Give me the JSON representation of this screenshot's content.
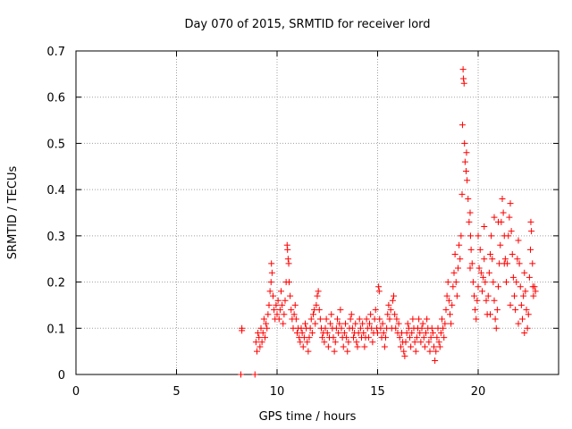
{
  "chart_data": {
    "type": "scatter",
    "title": "Day 070 of 2015, SRMTID for receiver lord",
    "xlabel": "GPS time / hours",
    "ylabel": "SRMTID / TECUs",
    "xlim": [
      0,
      24
    ],
    "ylim": [
      0,
      0.7
    ],
    "xticks": [
      0,
      5,
      10,
      15,
      20
    ],
    "xtick_labels": [
      "0",
      "5",
      "10",
      "15",
      "20"
    ],
    "yticks": [
      0,
      0.1,
      0.2,
      0.3,
      0.4,
      0.5,
      0.6,
      0.7
    ],
    "ytick_labels": [
      "0",
      "0.1",
      "0.2",
      "0.3",
      "0.4",
      "0.5",
      "0.6",
      "0.7"
    ],
    "grid": true,
    "marker": "+",
    "color": "#ff0000",
    "series": [
      {
        "name": "SRMTID",
        "points": [
          [
            8.2,
            0.0
          ],
          [
            8.9,
            0.0
          ],
          [
            8.25,
            0.1
          ],
          [
            8.25,
            0.095
          ],
          [
            8.95,
            0.07
          ],
          [
            9.0,
            0.05
          ],
          [
            9.05,
            0.09
          ],
          [
            9.1,
            0.08
          ],
          [
            9.15,
            0.06
          ],
          [
            9.2,
            0.1
          ],
          [
            9.25,
            0.07
          ],
          [
            9.3,
            0.09
          ],
          [
            9.35,
            0.12
          ],
          [
            9.4,
            0.08
          ],
          [
            9.45,
            0.11
          ],
          [
            9.5,
            0.1
          ],
          [
            9.55,
            0.13
          ],
          [
            9.6,
            0.15
          ],
          [
            9.65,
            0.18
          ],
          [
            9.7,
            0.2
          ],
          [
            9.72,
            0.24
          ],
          [
            9.75,
            0.22
          ],
          [
            9.8,
            0.17
          ],
          [
            9.85,
            0.14
          ],
          [
            9.9,
            0.12
          ],
          [
            9.95,
            0.15
          ],
          [
            10.0,
            0.13
          ],
          [
            10.05,
            0.16
          ],
          [
            10.1,
            0.12
          ],
          [
            10.15,
            0.14
          ],
          [
            10.2,
            0.18
          ],
          [
            10.25,
            0.15
          ],
          [
            10.3,
            0.11
          ],
          [
            10.35,
            0.13
          ],
          [
            10.4,
            0.16
          ],
          [
            10.45,
            0.2
          ],
          [
            10.5,
            0.28
          ],
          [
            10.52,
            0.27
          ],
          [
            10.55,
            0.25
          ],
          [
            10.58,
            0.24
          ],
          [
            10.6,
            0.2
          ],
          [
            10.65,
            0.17
          ],
          [
            10.7,
            0.14
          ],
          [
            10.75,
            0.12
          ],
          [
            10.8,
            0.1
          ],
          [
            10.85,
            0.13
          ],
          [
            10.9,
            0.15
          ],
          [
            10.95,
            0.12
          ],
          [
            11.0,
            0.09
          ],
          [
            11.05,
            0.1
          ],
          [
            11.1,
            0.08
          ],
          [
            11.15,
            0.07
          ],
          [
            11.2,
            0.1
          ],
          [
            11.25,
            0.09
          ],
          [
            11.3,
            0.06
          ],
          [
            11.35,
            0.08
          ],
          [
            11.4,
            0.11
          ],
          [
            11.45,
            0.1
          ],
          [
            11.5,
            0.07
          ],
          [
            11.55,
            0.05
          ],
          [
            11.6,
            0.08
          ],
          [
            11.65,
            0.1
          ],
          [
            11.7,
            0.12
          ],
          [
            11.75,
            0.09
          ],
          [
            11.8,
            0.13
          ],
          [
            11.85,
            0.14
          ],
          [
            11.9,
            0.11
          ],
          [
            11.95,
            0.15
          ],
          [
            12.0,
            0.17
          ],
          [
            12.05,
            0.18
          ],
          [
            12.1,
            0.14
          ],
          [
            12.15,
            0.12
          ],
          [
            12.2,
            0.1
          ],
          [
            12.25,
            0.08
          ],
          [
            12.3,
            0.09
          ],
          [
            12.35,
            0.07
          ],
          [
            12.4,
            0.1
          ],
          [
            12.45,
            0.12
          ],
          [
            12.5,
            0.09
          ],
          [
            12.55,
            0.06
          ],
          [
            12.6,
            0.08
          ],
          [
            12.65,
            0.11
          ],
          [
            12.7,
            0.13
          ],
          [
            12.75,
            0.1
          ],
          [
            12.8,
            0.08
          ],
          [
            12.85,
            0.05
          ],
          [
            12.9,
            0.07
          ],
          [
            12.95,
            0.1
          ],
          [
            13.0,
            0.12
          ],
          [
            13.05,
            0.09
          ],
          [
            13.1,
            0.11
          ],
          [
            13.15,
            0.14
          ],
          [
            13.2,
            0.1
          ],
          [
            13.25,
            0.08
          ],
          [
            13.3,
            0.06
          ],
          [
            13.35,
            0.09
          ],
          [
            13.4,
            0.11
          ],
          [
            13.45,
            0.08
          ],
          [
            13.5,
            0.05
          ],
          [
            13.55,
            0.07
          ],
          [
            13.6,
            0.1
          ],
          [
            13.65,
            0.12
          ],
          [
            13.7,
            0.13
          ],
          [
            13.75,
            0.1
          ],
          [
            13.8,
            0.08
          ],
          [
            13.85,
            0.09
          ],
          [
            13.9,
            0.11
          ],
          [
            13.95,
            0.07
          ],
          [
            14.0,
            0.06
          ],
          [
            14.05,
            0.09
          ],
          [
            14.1,
            0.12
          ],
          [
            14.15,
            0.1
          ],
          [
            14.2,
            0.08
          ],
          [
            14.25,
            0.11
          ],
          [
            14.3,
            0.09
          ],
          [
            14.35,
            0.06
          ],
          [
            14.4,
            0.08
          ],
          [
            14.45,
            0.12
          ],
          [
            14.5,
            0.1
          ],
          [
            14.55,
            0.08
          ],
          [
            14.6,
            0.11
          ],
          [
            14.65,
            0.13
          ],
          [
            14.7,
            0.1
          ],
          [
            14.75,
            0.07
          ],
          [
            14.8,
            0.09
          ],
          [
            14.85,
            0.12
          ],
          [
            14.9,
            0.14
          ],
          [
            14.95,
            0.1
          ],
          [
            15.0,
            0.09
          ],
          [
            15.05,
            0.19
          ],
          [
            15.08,
            0.18
          ],
          [
            15.1,
            0.12
          ],
          [
            15.15,
            0.1
          ],
          [
            15.2,
            0.08
          ],
          [
            15.25,
            0.11
          ],
          [
            15.3,
            0.09
          ],
          [
            15.35,
            0.06
          ],
          [
            15.4,
            0.08
          ],
          [
            15.45,
            0.1
          ],
          [
            15.5,
            0.13
          ],
          [
            15.55,
            0.15
          ],
          [
            15.6,
            0.12
          ],
          [
            15.65,
            0.14
          ],
          [
            15.7,
            0.1
          ],
          [
            15.75,
            0.16
          ],
          [
            15.8,
            0.17
          ],
          [
            15.85,
            0.13
          ],
          [
            15.9,
            0.1
          ],
          [
            15.95,
            0.12
          ],
          [
            16.0,
            0.09
          ],
          [
            16.05,
            0.11
          ],
          [
            16.1,
            0.08
          ],
          [
            16.15,
            0.06
          ],
          [
            16.2,
            0.09
          ],
          [
            16.25,
            0.07
          ],
          [
            16.3,
            0.05
          ],
          [
            16.35,
            0.04
          ],
          [
            16.4,
            0.07
          ],
          [
            16.45,
            0.09
          ],
          [
            16.5,
            0.11
          ],
          [
            16.55,
            0.1
          ],
          [
            16.6,
            0.08
          ],
          [
            16.65,
            0.06
          ],
          [
            16.7,
            0.09
          ],
          [
            16.75,
            0.12
          ],
          [
            16.8,
            0.1
          ],
          [
            16.85,
            0.07
          ],
          [
            16.9,
            0.05
          ],
          [
            16.95,
            0.08
          ],
          [
            17.0,
            0.1
          ],
          [
            17.05,
            0.12
          ],
          [
            17.1,
            0.09
          ],
          [
            17.15,
            0.07
          ],
          [
            17.2,
            0.1
          ],
          [
            17.25,
            0.11
          ],
          [
            17.3,
            0.08
          ],
          [
            17.35,
            0.06
          ],
          [
            17.4,
            0.09
          ],
          [
            17.45,
            0.12
          ],
          [
            17.5,
            0.1
          ],
          [
            17.55,
            0.07
          ],
          [
            17.6,
            0.05
          ],
          [
            17.65,
            0.08
          ],
          [
            17.7,
            0.1
          ],
          [
            17.75,
            0.09
          ],
          [
            17.8,
            0.06
          ],
          [
            17.85,
            0.03
          ],
          [
            17.9,
            0.05
          ],
          [
            17.95,
            0.08
          ],
          [
            18.0,
            0.1
          ],
          [
            18.05,
            0.07
          ],
          [
            18.1,
            0.06
          ],
          [
            18.15,
            0.09
          ],
          [
            18.2,
            0.12
          ],
          [
            18.25,
            0.1
          ],
          [
            18.3,
            0.08
          ],
          [
            18.35,
            0.11
          ],
          [
            18.4,
            0.14
          ],
          [
            18.45,
            0.17
          ],
          [
            18.5,
            0.2
          ],
          [
            18.55,
            0.16
          ],
          [
            18.6,
            0.13
          ],
          [
            18.65,
            0.11
          ],
          [
            18.7,
            0.15
          ],
          [
            18.75,
            0.19
          ],
          [
            18.8,
            0.22
          ],
          [
            18.85,
            0.26
          ],
          [
            18.9,
            0.2
          ],
          [
            18.95,
            0.17
          ],
          [
            19.0,
            0.23
          ],
          [
            19.05,
            0.28
          ],
          [
            19.1,
            0.25
          ],
          [
            19.15,
            0.3
          ],
          [
            19.2,
            0.39
          ],
          [
            19.22,
            0.54
          ],
          [
            19.25,
            0.66
          ],
          [
            19.27,
            0.64
          ],
          [
            19.3,
            0.63
          ],
          [
            19.32,
            0.5
          ],
          [
            19.35,
            0.46
          ],
          [
            19.4,
            0.44
          ],
          [
            19.42,
            0.48
          ],
          [
            19.45,
            0.42
          ],
          [
            19.5,
            0.38
          ],
          [
            19.55,
            0.33
          ],
          [
            19.6,
            0.35
          ],
          [
            19.62,
            0.3
          ],
          [
            19.65,
            0.27
          ],
          [
            19.7,
            0.24
          ],
          [
            19.75,
            0.2
          ],
          [
            19.8,
            0.17
          ],
          [
            19.85,
            0.14
          ],
          [
            19.9,
            0.12
          ],
          [
            19.95,
            0.16
          ],
          [
            20.0,
            0.19
          ],
          [
            20.05,
            0.23
          ],
          [
            20.1,
            0.27
          ],
          [
            20.15,
            0.22
          ],
          [
            20.2,
            0.18
          ],
          [
            20.25,
            0.21
          ],
          [
            20.3,
            0.25
          ],
          [
            20.35,
            0.2
          ],
          [
            20.4,
            0.16
          ],
          [
            20.45,
            0.13
          ],
          [
            20.5,
            0.17
          ],
          [
            20.55,
            0.22
          ],
          [
            20.6,
            0.26
          ],
          [
            20.65,
            0.3
          ],
          [
            20.7,
            0.25
          ],
          [
            20.75,
            0.2
          ],
          [
            20.8,
            0.16
          ],
          [
            20.85,
            0.12
          ],
          [
            20.9,
            0.1
          ],
          [
            20.95,
            0.14
          ],
          [
            21.0,
            0.19
          ],
          [
            21.05,
            0.24
          ],
          [
            21.1,
            0.28
          ],
          [
            21.15,
            0.33
          ],
          [
            21.2,
            0.38
          ],
          [
            21.25,
            0.35
          ],
          [
            21.3,
            0.3
          ],
          [
            21.35,
            0.25
          ],
          [
            21.4,
            0.2
          ],
          [
            21.45,
            0.24
          ],
          [
            21.5,
            0.3
          ],
          [
            21.55,
            0.34
          ],
          [
            21.6,
            0.37
          ],
          [
            21.65,
            0.31
          ],
          [
            21.7,
            0.26
          ],
          [
            21.75,
            0.21
          ],
          [
            21.8,
            0.17
          ],
          [
            21.85,
            0.14
          ],
          [
            21.9,
            0.2
          ],
          [
            21.95,
            0.25
          ],
          [
            22.0,
            0.29
          ],
          [
            22.05,
            0.24
          ],
          [
            22.1,
            0.19
          ],
          [
            22.15,
            0.15
          ],
          [
            22.2,
            0.12
          ],
          [
            22.25,
            0.17
          ],
          [
            22.3,
            0.22
          ],
          [
            22.35,
            0.18
          ],
          [
            22.4,
            0.14
          ],
          [
            22.45,
            0.1
          ],
          [
            22.5,
            0.13
          ],
          [
            22.55,
            0.21
          ],
          [
            22.6,
            0.27
          ],
          [
            22.62,
            0.33
          ],
          [
            22.65,
            0.31
          ],
          [
            22.7,
            0.24
          ],
          [
            22.72,
            0.19
          ],
          [
            22.75,
            0.17
          ],
          [
            22.8,
            0.19
          ],
          [
            22.85,
            0.18
          ],
          [
            20.0,
            0.3
          ],
          [
            20.3,
            0.32
          ],
          [
            20.8,
            0.34
          ],
          [
            21.0,
            0.33
          ],
          [
            21.3,
            0.24
          ],
          [
            21.6,
            0.15
          ],
          [
            22.0,
            0.11
          ],
          [
            22.3,
            0.09
          ],
          [
            19.6,
            0.23
          ],
          [
            20.6,
            0.13
          ]
        ]
      }
    ]
  }
}
